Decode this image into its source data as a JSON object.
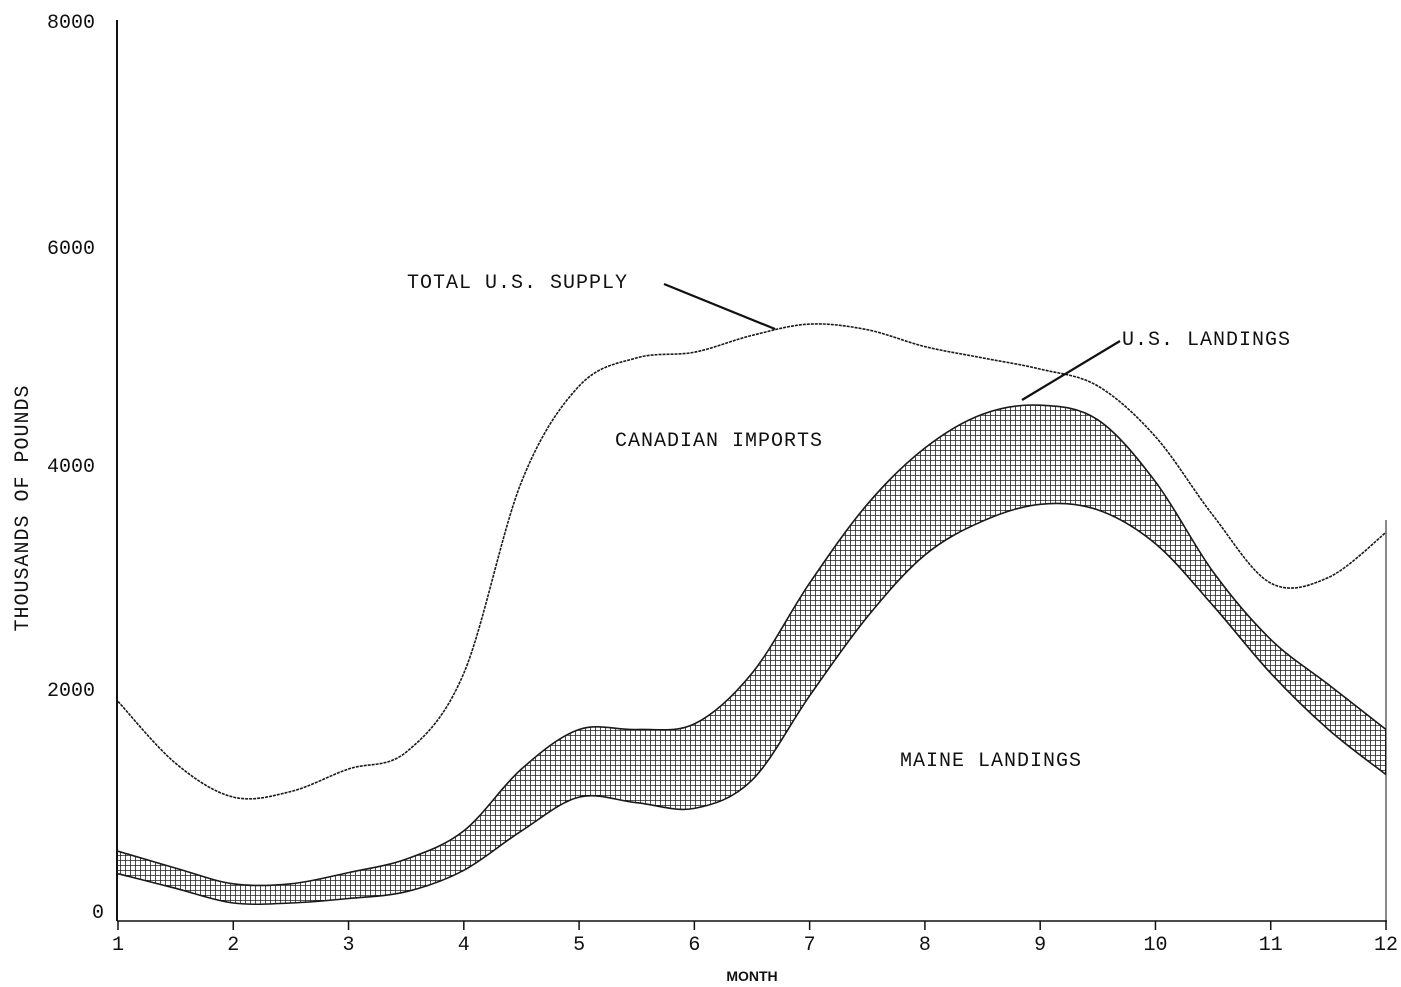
{
  "chart_data": {
    "type": "area",
    "title": "",
    "xlabel": "MONTH",
    "ylabel": "THOUSANDS OF POUNDS",
    "xlim": [
      1,
      12
    ],
    "ylim": [
      0,
      8000
    ],
    "x_ticks": [
      "1",
      "2",
      "3",
      "4",
      "5",
      "6",
      "7",
      "8",
      "9",
      "10",
      "11",
      "12"
    ],
    "y_ticks": [
      "0",
      "2000",
      "4000",
      "6000",
      "8000"
    ],
    "grid": false,
    "colors": {
      "line": "#1a1a1a",
      "hatch": "#222222",
      "background": "#ffffff"
    },
    "series": [
      {
        "name": "TOTAL U.S. SUPPLY",
        "x": [
          1,
          1.5,
          2,
          2.5,
          3,
          3.5,
          4,
          4.5,
          5,
          5.5,
          6,
          6.5,
          7,
          7.5,
          8,
          8.5,
          9,
          9.5,
          10,
          10.5,
          11,
          11.5,
          12
        ],
        "y": [
          1950,
          1400,
          1100,
          1150,
          1350,
          1500,
          2200,
          3900,
          4750,
          5000,
          5050,
          5200,
          5300,
          5250,
          5100,
          5000,
          4900,
          4750,
          4300,
          3600,
          3000,
          3050,
          3450
        ]
      },
      {
        "name": "U.S. LANDINGS",
        "x": [
          1,
          1.5,
          2,
          2.5,
          3,
          3.5,
          4,
          4.5,
          5,
          5.5,
          6,
          6.5,
          7,
          7.5,
          8,
          8.5,
          9,
          9.5,
          10,
          10.5,
          11,
          11.5,
          12
        ],
        "y": [
          620,
          470,
          330,
          330,
          430,
          550,
          800,
          1350,
          1700,
          1700,
          1750,
          2200,
          3000,
          3700,
          4200,
          4500,
          4580,
          4450,
          3900,
          3100,
          2500,
          2100,
          1700
        ]
      },
      {
        "name": "MAINE LANDINGS",
        "x": [
          1,
          1.5,
          2,
          2.5,
          3,
          3.5,
          4,
          4.5,
          5,
          5.5,
          6,
          6.5,
          7,
          7.5,
          8,
          8.5,
          9,
          9.5,
          10,
          10.5,
          11,
          11.5,
          12
        ],
        "y": [
          420,
          290,
          160,
          160,
          200,
          260,
          450,
          800,
          1100,
          1050,
          1000,
          1250,
          2000,
          2700,
          3250,
          3550,
          3700,
          3650,
          3350,
          2800,
          2200,
          1700,
          1300
        ]
      }
    ],
    "annotations": [
      {
        "text": "TOTAL U.S. SUPPLY",
        "points_to": "TOTAL U.S. SUPPLY",
        "at_x": 6.7
      },
      {
        "text": "U.S. LANDINGS",
        "points_to": "U.S. LANDINGS",
        "at_x": 8.9
      },
      {
        "text": "CANADIAN IMPORTS",
        "region": "between total supply and U.S. landings"
      },
      {
        "text": "MAINE LANDINGS",
        "region": "below Maine landings"
      }
    ]
  }
}
